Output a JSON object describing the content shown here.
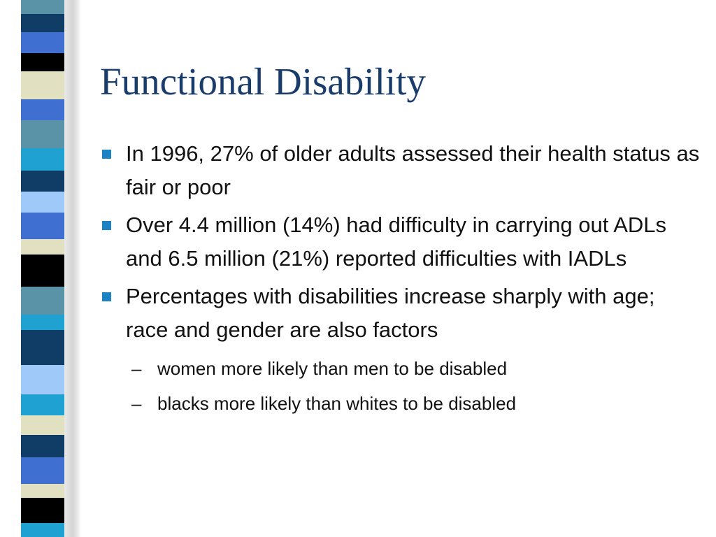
{
  "slide": {
    "title": "Functional Disability",
    "bullets": [
      {
        "text": "In 1996, 27% of older adults assessed their health status as fair or poor"
      },
      {
        "text": "Over 4.4 million (14%) had difficulty in carrying out ADLs and 6.5 million (21%) reported difficulties with IADLs"
      },
      {
        "text": "Percentages with disabilities increase sharply with age; race and gender are also factors",
        "sub": [
          {
            "text": "women more likely than men to be disabled"
          },
          {
            "text": "blacks more likely than whites to be disabled"
          }
        ]
      }
    ],
    "sub_marker": "–"
  },
  "colors": {
    "title": "#1a3c6b",
    "bullet": "#1d82c4",
    "stripe": [
      "#5a93a8",
      "#0f3d66",
      "#3f6fd1",
      "#000000",
      "#e1e1c2",
      "#1fa1d1",
      "#9fc9f8"
    ]
  }
}
